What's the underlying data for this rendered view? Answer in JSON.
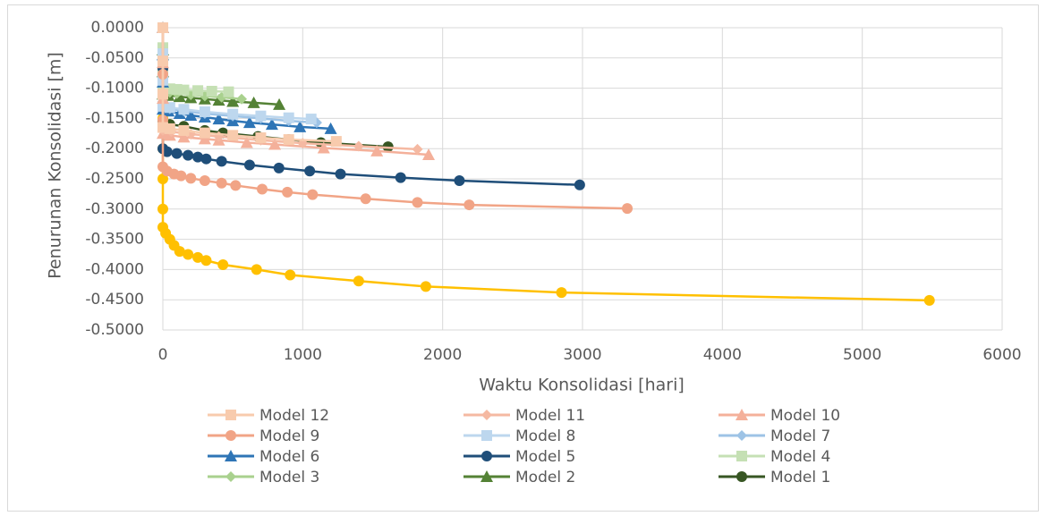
{
  "chart_data": {
    "type": "line",
    "xlabel": "Waktu Konsolidasi [hari]",
    "ylabel": "Penurunan Konsolidasi [m]",
    "xlim": [
      0,
      6000
    ],
    "xticks": [
      0,
      1000,
      2000,
      3000,
      4000,
      5000,
      6000
    ],
    "ylim": [
      -0.5,
      0
    ],
    "yticks": [
      {
        "value": -0.5,
        "label": "-0.5000"
      },
      {
        "value": -0.45,
        "label": "-0.4500"
      },
      {
        "value": -0.4,
        "label": "-0.4000"
      },
      {
        "value": -0.35,
        "label": "-0.3500"
      },
      {
        "value": -0.3,
        "label": "-0.3000"
      },
      {
        "value": -0.25,
        "label": "-0.2500"
      },
      {
        "value": -0.2,
        "label": "-0.2000"
      },
      {
        "value": -0.15,
        "label": "-0.1500"
      },
      {
        "value": -0.1,
        "label": "-0.1000"
      },
      {
        "value": -0.05,
        "label": "-0.0500"
      },
      {
        "value": 0,
        "label": "0.0000"
      }
    ],
    "grid": true,
    "legend": "bottom",
    "series": [
      {
        "name": "Model 12",
        "color": "#f8cbad",
        "marker": "square",
        "x": [
          0,
          0,
          0,
          0,
          50,
          150,
          300,
          500,
          700,
          900,
          1240
        ],
        "values": [
          0,
          -0.055,
          -0.11,
          -0.165,
          -0.167,
          -0.17,
          -0.174,
          -0.178,
          -0.182,
          -0.185,
          -0.188
        ]
      },
      {
        "name": "Model 11",
        "color": "#f5b9a2",
        "marker": "diamond",
        "x": [
          0,
          0,
          0,
          0,
          60,
          200,
          400,
          700,
          1000,
          1400,
          1820
        ],
        "values": [
          0,
          -0.057,
          -0.113,
          -0.17,
          -0.172,
          -0.176,
          -0.18,
          -0.186,
          -0.191,
          -0.196,
          -0.201
        ]
      },
      {
        "name": "Model 10",
        "color": "#f4b09a",
        "marker": "triangle",
        "x": [
          0,
          0,
          0,
          0,
          50,
          150,
          300,
          400,
          600,
          800,
          1150,
          1530,
          1900
        ],
        "values": [
          0,
          -0.058,
          -0.117,
          -0.175,
          -0.178,
          -0.181,
          -0.184,
          -0.186,
          -0.19,
          -0.193,
          -0.199,
          -0.204,
          -0.21
        ]
      },
      {
        "name": "Model 9",
        "color": "#f1a486",
        "marker": "circle",
        "x": [
          0,
          0,
          0,
          0,
          30,
          80,
          130,
          200,
          300,
          420,
          520,
          710,
          890,
          1070,
          1450,
          1820,
          2190,
          3320
        ],
        "values": [
          0,
          -0.077,
          -0.153,
          -0.23,
          -0.237,
          -0.242,
          -0.245,
          -0.249,
          -0.253,
          -0.257,
          -0.261,
          -0.267,
          -0.272,
          -0.276,
          -0.283,
          -0.289,
          -0.293,
          -0.299
        ]
      },
      {
        "name": "Model 8",
        "color": "#bdd7ee",
        "marker": "square",
        "x": [
          0,
          0,
          0,
          0,
          50,
          150,
          300,
          500,
          700,
          900,
          1060
        ],
        "values": [
          0,
          -0.043,
          -0.087,
          -0.13,
          -0.132,
          -0.135,
          -0.139,
          -0.143,
          -0.146,
          -0.149,
          -0.151
        ]
      },
      {
        "name": "Model 7",
        "color": "#9dc3e6",
        "marker": "diamond",
        "x": [
          0,
          0,
          0,
          0,
          50,
          150,
          300,
          500,
          700,
          900,
          1100
        ],
        "values": [
          0,
          -0.044,
          -0.088,
          -0.132,
          -0.134,
          -0.138,
          -0.142,
          -0.146,
          -0.15,
          -0.154,
          -0.157
        ]
      },
      {
        "name": "Model 6",
        "color": "#2e75b6",
        "marker": "triangle",
        "x": [
          0,
          0,
          0,
          0,
          40,
          120,
          200,
          300,
          400,
          500,
          620,
          780,
          980,
          1200
        ],
        "values": [
          0,
          -0.045,
          -0.09,
          -0.135,
          -0.138,
          -0.142,
          -0.145,
          -0.148,
          -0.151,
          -0.154,
          -0.157,
          -0.16,
          -0.164,
          -0.167
        ]
      },
      {
        "name": "Model 5",
        "color": "#1f4e79",
        "marker": "circle",
        "x": [
          0,
          0,
          0,
          0,
          30,
          100,
          180,
          250,
          310,
          420,
          620,
          830,
          1050,
          1270,
          1700,
          2120,
          2980
        ],
        "values": [
          0,
          -0.067,
          -0.133,
          -0.2,
          -0.205,
          -0.208,
          -0.211,
          -0.214,
          -0.217,
          -0.221,
          -0.227,
          -0.232,
          -0.237,
          -0.242,
          -0.248,
          -0.253,
          -0.26
        ]
      },
      {
        "name": "Model 4",
        "color": "#c5e0b4",
        "marker": "square",
        "x": [
          0,
          0,
          0,
          0,
          50,
          100,
          150,
          250,
          350,
          470
        ],
        "values": [
          0,
          -0.033,
          -0.067,
          -0.1,
          -0.101,
          -0.102,
          -0.103,
          -0.104,
          -0.105,
          -0.106
        ]
      },
      {
        "name": "Model 3",
        "color": "#a9d18e",
        "marker": "diamond",
        "x": [
          0,
          0,
          0,
          0,
          50,
          100,
          200,
          300,
          420,
          563
        ],
        "values": [
          0,
          -0.035,
          -0.07,
          -0.105,
          -0.107,
          -0.109,
          -0.111,
          -0.113,
          -0.115,
          -0.118
        ]
      },
      {
        "name": "Model 2",
        "color": "#548235",
        "marker": "triangle",
        "x": [
          0,
          0,
          0,
          0,
          40,
          120,
          200,
          300,
          400,
          500,
          650,
          832
        ],
        "values": [
          0,
          -0.037,
          -0.073,
          -0.11,
          -0.112,
          -0.114,
          -0.116,
          -0.118,
          -0.12,
          -0.122,
          -0.124,
          -0.127
        ]
      },
      {
        "name": "Model 1",
        "color": "#375623",
        "marker": "circle",
        "x": [
          0,
          0,
          0,
          0,
          50,
          150,
          300,
          430,
          680,
          900,
          1130,
          1610
        ],
        "values": [
          0,
          -0.052,
          -0.103,
          -0.155,
          -0.16,
          -0.163,
          -0.17,
          -0.174,
          -0.18,
          -0.185,
          -0.19,
          -0.197
        ]
      },
      {
        "color": "#ffc000",
        "marker": "circle",
        "x": [
          0,
          0,
          0,
          0,
          0,
          0,
          0,
          0,
          20,
          50,
          80,
          120,
          180,
          250,
          310,
          430,
          670,
          910,
          1400,
          1880,
          2850,
          5480
        ],
        "values": [
          0,
          -0.05,
          -0.1,
          -0.15,
          -0.2,
          -0.25,
          -0.3,
          -0.33,
          -0.34,
          -0.35,
          -0.36,
          -0.37,
          -0.375,
          -0.38,
          -0.385,
          -0.392,
          -0.4,
          -0.409,
          -0.419,
          -0.428,
          -0.438,
          -0.451
        ]
      }
    ]
  }
}
